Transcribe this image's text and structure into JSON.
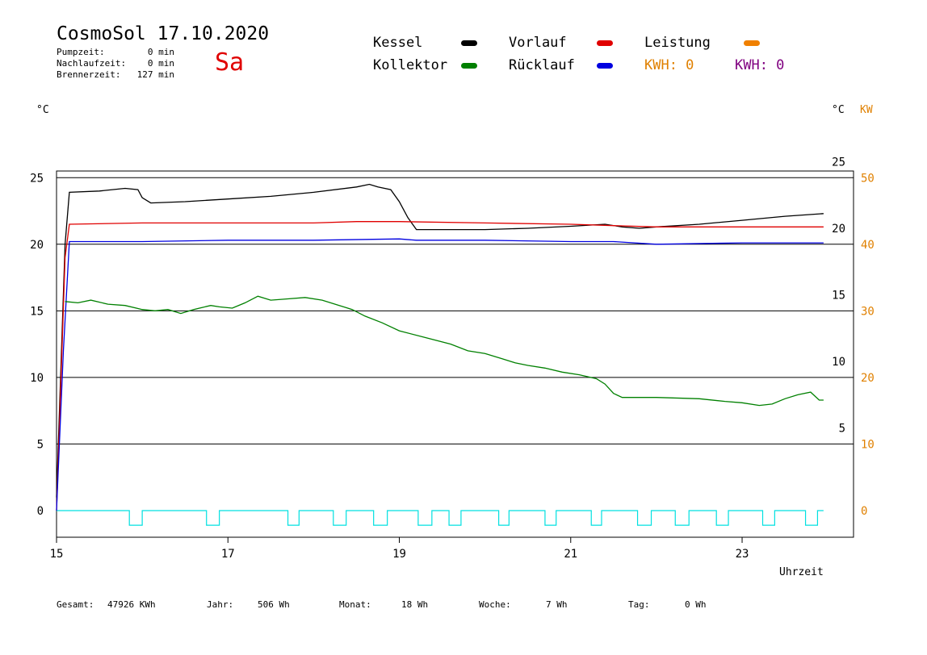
{
  "header": {
    "title": "CosmoSol 17.10.2020",
    "day": "Sa",
    "stats": [
      {
        "label": "Pumpzeit:",
        "value": "0 min"
      },
      {
        "label": "Nachlaufzeit:",
        "value": "0 min"
      },
      {
        "label": "Brennerzeit:",
        "value": "127 min"
      }
    ]
  },
  "legend": {
    "kessel": "Kessel",
    "vorlauf": "Vorlauf",
    "leistung": "Leistung",
    "kollektor": "Kollektor",
    "ruecklauf": "Rücklauf",
    "kwh1": "KWH: 0",
    "kwh2": "KWH: 0"
  },
  "units": {
    "left": "°C",
    "right_c": "°C",
    "right_kw": "KW",
    "xlabel": "Uhrzeit"
  },
  "colors": {
    "kessel": "#000000",
    "vorlauf": "#e00000",
    "leistung": "#f08000",
    "kollektor": "#008000",
    "ruecklauf": "#0000e0",
    "pump": "#00e0e0",
    "kwh1": "#e08000",
    "kwh2": "#800080",
    "day": "#e00000"
  },
  "footer": [
    {
      "label": "Gesamt:",
      "value": "47926 KWh"
    },
    {
      "label": "Jahr:",
      "value": "506 Wh"
    },
    {
      "label": "Monat:",
      "value": "18 Wh"
    },
    {
      "label": "Woche:",
      "value": "7 Wh"
    },
    {
      "label": "Tag:",
      "value": "0 Wh"
    }
  ],
  "chart_data": {
    "type": "line",
    "xlabel": "Uhrzeit",
    "xlim": [
      15,
      24.3
    ],
    "xticks": [
      15,
      17,
      19,
      21,
      23
    ],
    "ylim_left": [
      -2,
      25.5
    ],
    "yticks_left": [
      0,
      5,
      10,
      15,
      20,
      25
    ],
    "yticks_right_c": [
      5,
      10,
      15,
      20,
      25
    ],
    "yticks_right_kw": [
      0,
      10,
      20,
      30,
      40,
      50
    ],
    "series": [
      {
        "name": "Kessel",
        "color": "#000000",
        "points": [
          [
            15,
            1
          ],
          [
            15.1,
            20
          ],
          [
            15.15,
            23.9
          ],
          [
            15.5,
            24
          ],
          [
            15.8,
            24.2
          ],
          [
            15.95,
            24.1
          ],
          [
            16,
            23.5
          ],
          [
            16.1,
            23.1
          ],
          [
            16.5,
            23.2
          ],
          [
            17,
            23.4
          ],
          [
            17.5,
            23.6
          ],
          [
            18,
            23.9
          ],
          [
            18.5,
            24.3
          ],
          [
            18.65,
            24.5
          ],
          [
            18.75,
            24.3
          ],
          [
            18.9,
            24.1
          ],
          [
            19,
            23.2
          ],
          [
            19.1,
            22
          ],
          [
            19.2,
            21.1
          ],
          [
            19.6,
            21.1
          ],
          [
            20,
            21.1
          ],
          [
            20.5,
            21.2
          ],
          [
            21,
            21.35
          ],
          [
            21.4,
            21.5
          ],
          [
            21.6,
            21.3
          ],
          [
            21.8,
            21.2
          ],
          [
            22,
            21.3
          ],
          [
            22.5,
            21.5
          ],
          [
            23,
            21.8
          ],
          [
            23.5,
            22.1
          ],
          [
            23.95,
            22.3
          ]
        ]
      },
      {
        "name": "Vorlauf",
        "color": "#e00000",
        "points": [
          [
            15,
            0
          ],
          [
            15.1,
            19
          ],
          [
            15.15,
            21.5
          ],
          [
            16,
            21.6
          ],
          [
            17,
            21.6
          ],
          [
            18,
            21.6
          ],
          [
            18.5,
            21.7
          ],
          [
            19,
            21.7
          ],
          [
            20,
            21.6
          ],
          [
            21,
            21.5
          ],
          [
            21.5,
            21.4
          ],
          [
            22,
            21.3
          ],
          [
            23,
            21.3
          ],
          [
            23.95,
            21.3
          ]
        ]
      },
      {
        "name": "Rücklauf",
        "color": "#0000e0",
        "points": [
          [
            15,
            0
          ],
          [
            15.08,
            12
          ],
          [
            15.15,
            20.2
          ],
          [
            16,
            20.2
          ],
          [
            17,
            20.3
          ],
          [
            18,
            20.3
          ],
          [
            19,
            20.4
          ],
          [
            19.2,
            20.3
          ],
          [
            20,
            20.3
          ],
          [
            21,
            20.2
          ],
          [
            21.5,
            20.2
          ],
          [
            22,
            20.0
          ],
          [
            23,
            20.1
          ],
          [
            23.95,
            20.1
          ]
        ]
      },
      {
        "name": "Kollektor",
        "color": "#008000",
        "points": [
          [
            15.1,
            15.7
          ],
          [
            15.25,
            15.6
          ],
          [
            15.4,
            15.8
          ],
          [
            15.6,
            15.5
          ],
          [
            15.8,
            15.4
          ],
          [
            16,
            15.1
          ],
          [
            16.15,
            15.0
          ],
          [
            16.3,
            15.1
          ],
          [
            16.45,
            14.8
          ],
          [
            16.6,
            15.1
          ],
          [
            16.8,
            15.4
          ],
          [
            16.9,
            15.3
          ],
          [
            17.05,
            15.2
          ],
          [
            17.2,
            15.6
          ],
          [
            17.35,
            16.1
          ],
          [
            17.5,
            15.8
          ],
          [
            17.7,
            15.9
          ],
          [
            17.9,
            16.0
          ],
          [
            18.1,
            15.8
          ],
          [
            18.3,
            15.4
          ],
          [
            18.45,
            15.1
          ],
          [
            18.6,
            14.6
          ],
          [
            18.8,
            14.1
          ],
          [
            19,
            13.5
          ],
          [
            19.3,
            13.0
          ],
          [
            19.6,
            12.5
          ],
          [
            19.8,
            12.0
          ],
          [
            20,
            11.8
          ],
          [
            20.2,
            11.4
          ],
          [
            20.35,
            11.1
          ],
          [
            20.5,
            10.9
          ],
          [
            20.7,
            10.7
          ],
          [
            20.9,
            10.4
          ],
          [
            21.1,
            10.2
          ],
          [
            21.3,
            9.9
          ],
          [
            21.4,
            9.5
          ],
          [
            21.5,
            8.8
          ],
          [
            21.6,
            8.5
          ],
          [
            22,
            8.5
          ],
          [
            22.5,
            8.4
          ],
          [
            22.8,
            8.2
          ],
          [
            23,
            8.1
          ],
          [
            23.2,
            7.9
          ],
          [
            23.35,
            8.0
          ],
          [
            23.5,
            8.4
          ],
          [
            23.65,
            8.7
          ],
          [
            23.8,
            8.9
          ],
          [
            23.9,
            8.3
          ],
          [
            23.95,
            8.3
          ]
        ]
      }
    ],
    "pump_pulses": [
      [
        15.85,
        16.0
      ],
      [
        16.75,
        16.9
      ],
      [
        17.7,
        17.83
      ],
      [
        18.23,
        18.38
      ],
      [
        18.7,
        18.86
      ],
      [
        19.22,
        19.38
      ],
      [
        19.58,
        19.72
      ],
      [
        20.16,
        20.28
      ],
      [
        20.7,
        20.83
      ],
      [
        21.24,
        21.36
      ],
      [
        21.78,
        21.94
      ],
      [
        22.22,
        22.38
      ],
      [
        22.7,
        22.84
      ],
      [
        23.24,
        23.38
      ],
      [
        23.74,
        23.88
      ]
    ]
  }
}
